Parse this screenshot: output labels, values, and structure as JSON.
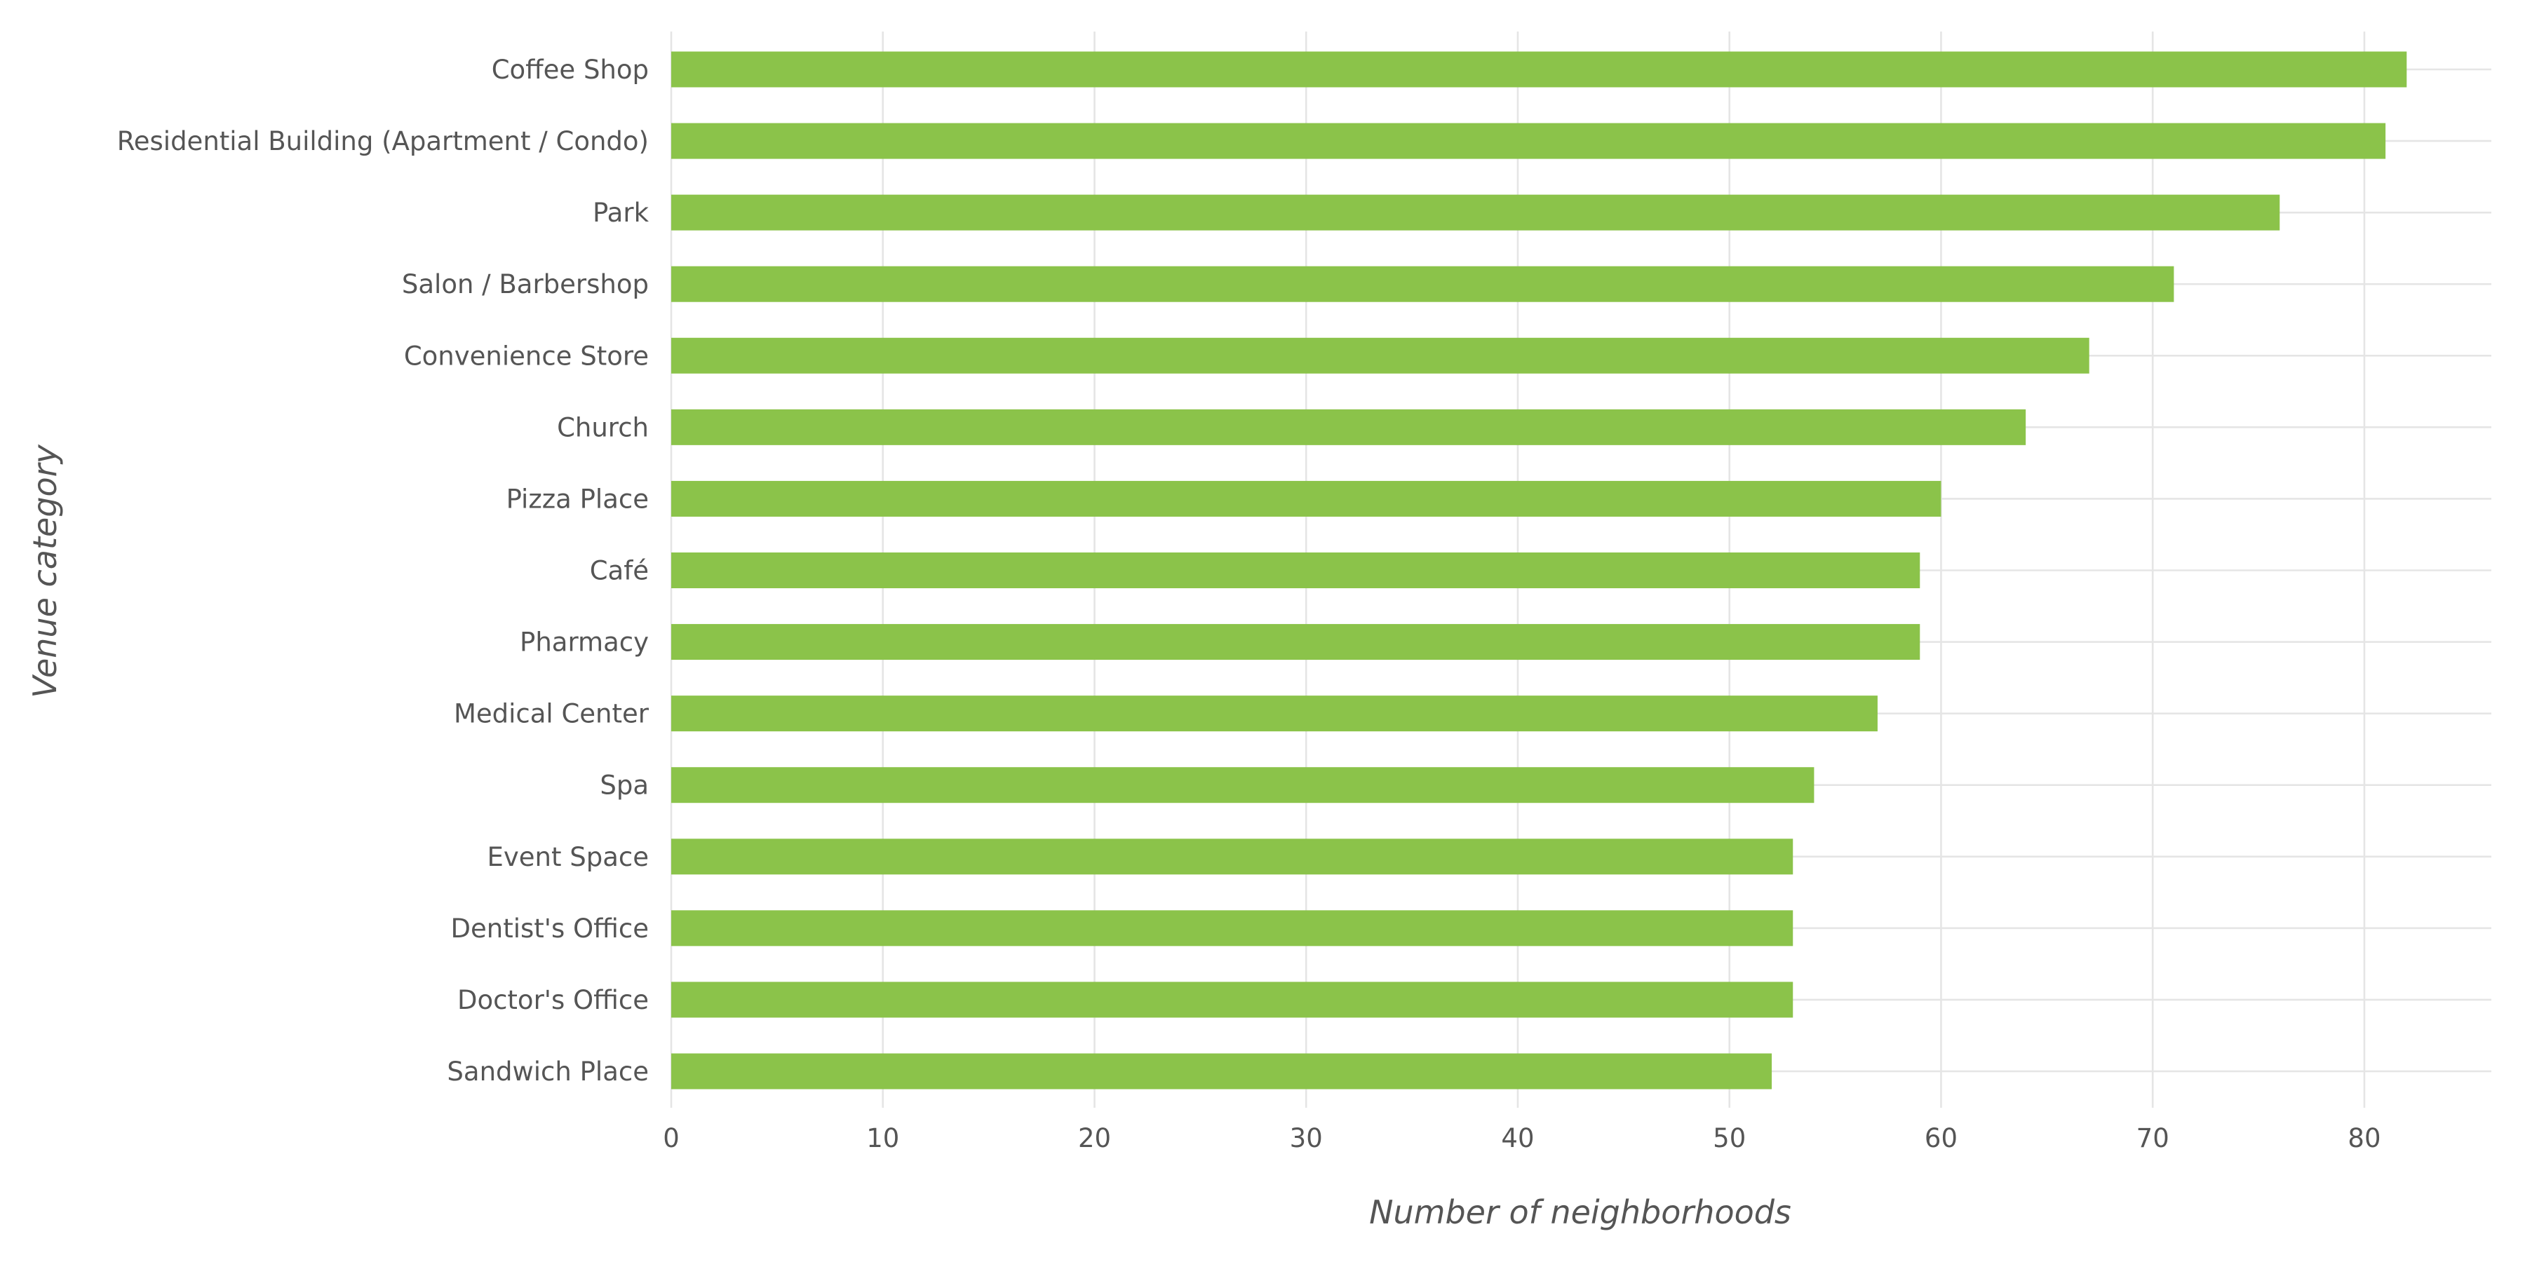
{
  "chart_data": {
    "type": "bar",
    "orientation": "horizontal",
    "title": "",
    "xlabel": "Number of neighborhoods",
    "ylabel": "Venue category",
    "xlim": [
      0,
      86
    ],
    "x_ticks": [
      0,
      10,
      20,
      30,
      40,
      50,
      60,
      70,
      80
    ],
    "grid": true,
    "bar_color": "#8bc34a",
    "categories": [
      "Coffee Shop",
      "Residential Building (Apartment / Condo)",
      "Park",
      "Salon / Barbershop",
      "Convenience Store",
      "Church",
      "Pizza Place",
      "Café",
      "Pharmacy",
      "Medical Center",
      "Spa",
      "Event Space",
      "Dentist's Office",
      "Doctor's Office",
      "Sandwich Place"
    ],
    "values": [
      82,
      81,
      76,
      71,
      67,
      64,
      60,
      59,
      59,
      57,
      54,
      53,
      53,
      53,
      52
    ]
  }
}
